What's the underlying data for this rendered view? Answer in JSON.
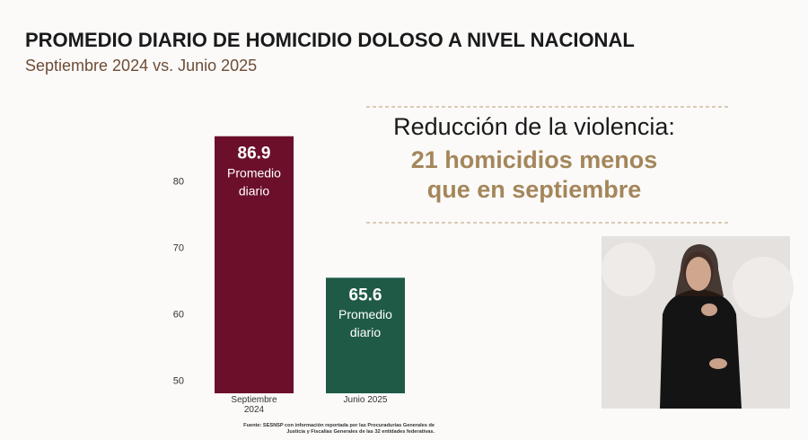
{
  "chart_data": {
    "type": "bar",
    "title": "PROMEDIO DIARIO DE HOMICIDIO DOLOSO A NIVEL NACIONAL",
    "subtitle": "Septiembre 2024 vs. Junio 2025",
    "categories": [
      "Septiembre 2024",
      "Junio 2025"
    ],
    "values": [
      86.9,
      65.6
    ],
    "colors": [
      "#6b0f2b",
      "#1f5a47"
    ],
    "bar_note_lines": [
      "Promedio",
      "diario"
    ],
    "ylim": [
      48.2,
      92
    ],
    "yticks": [
      50,
      60,
      70,
      80
    ],
    "grid": false,
    "annotation_lines": [
      "Reducción de la violencia:",
      "21 homicidios menos",
      "que en septiembre"
    ],
    "source": "Fuente: SESNSP con información reportada por las Procuradurías Generales de Justicia y Fiscalías Generales de las 32 entidades federativas."
  }
}
